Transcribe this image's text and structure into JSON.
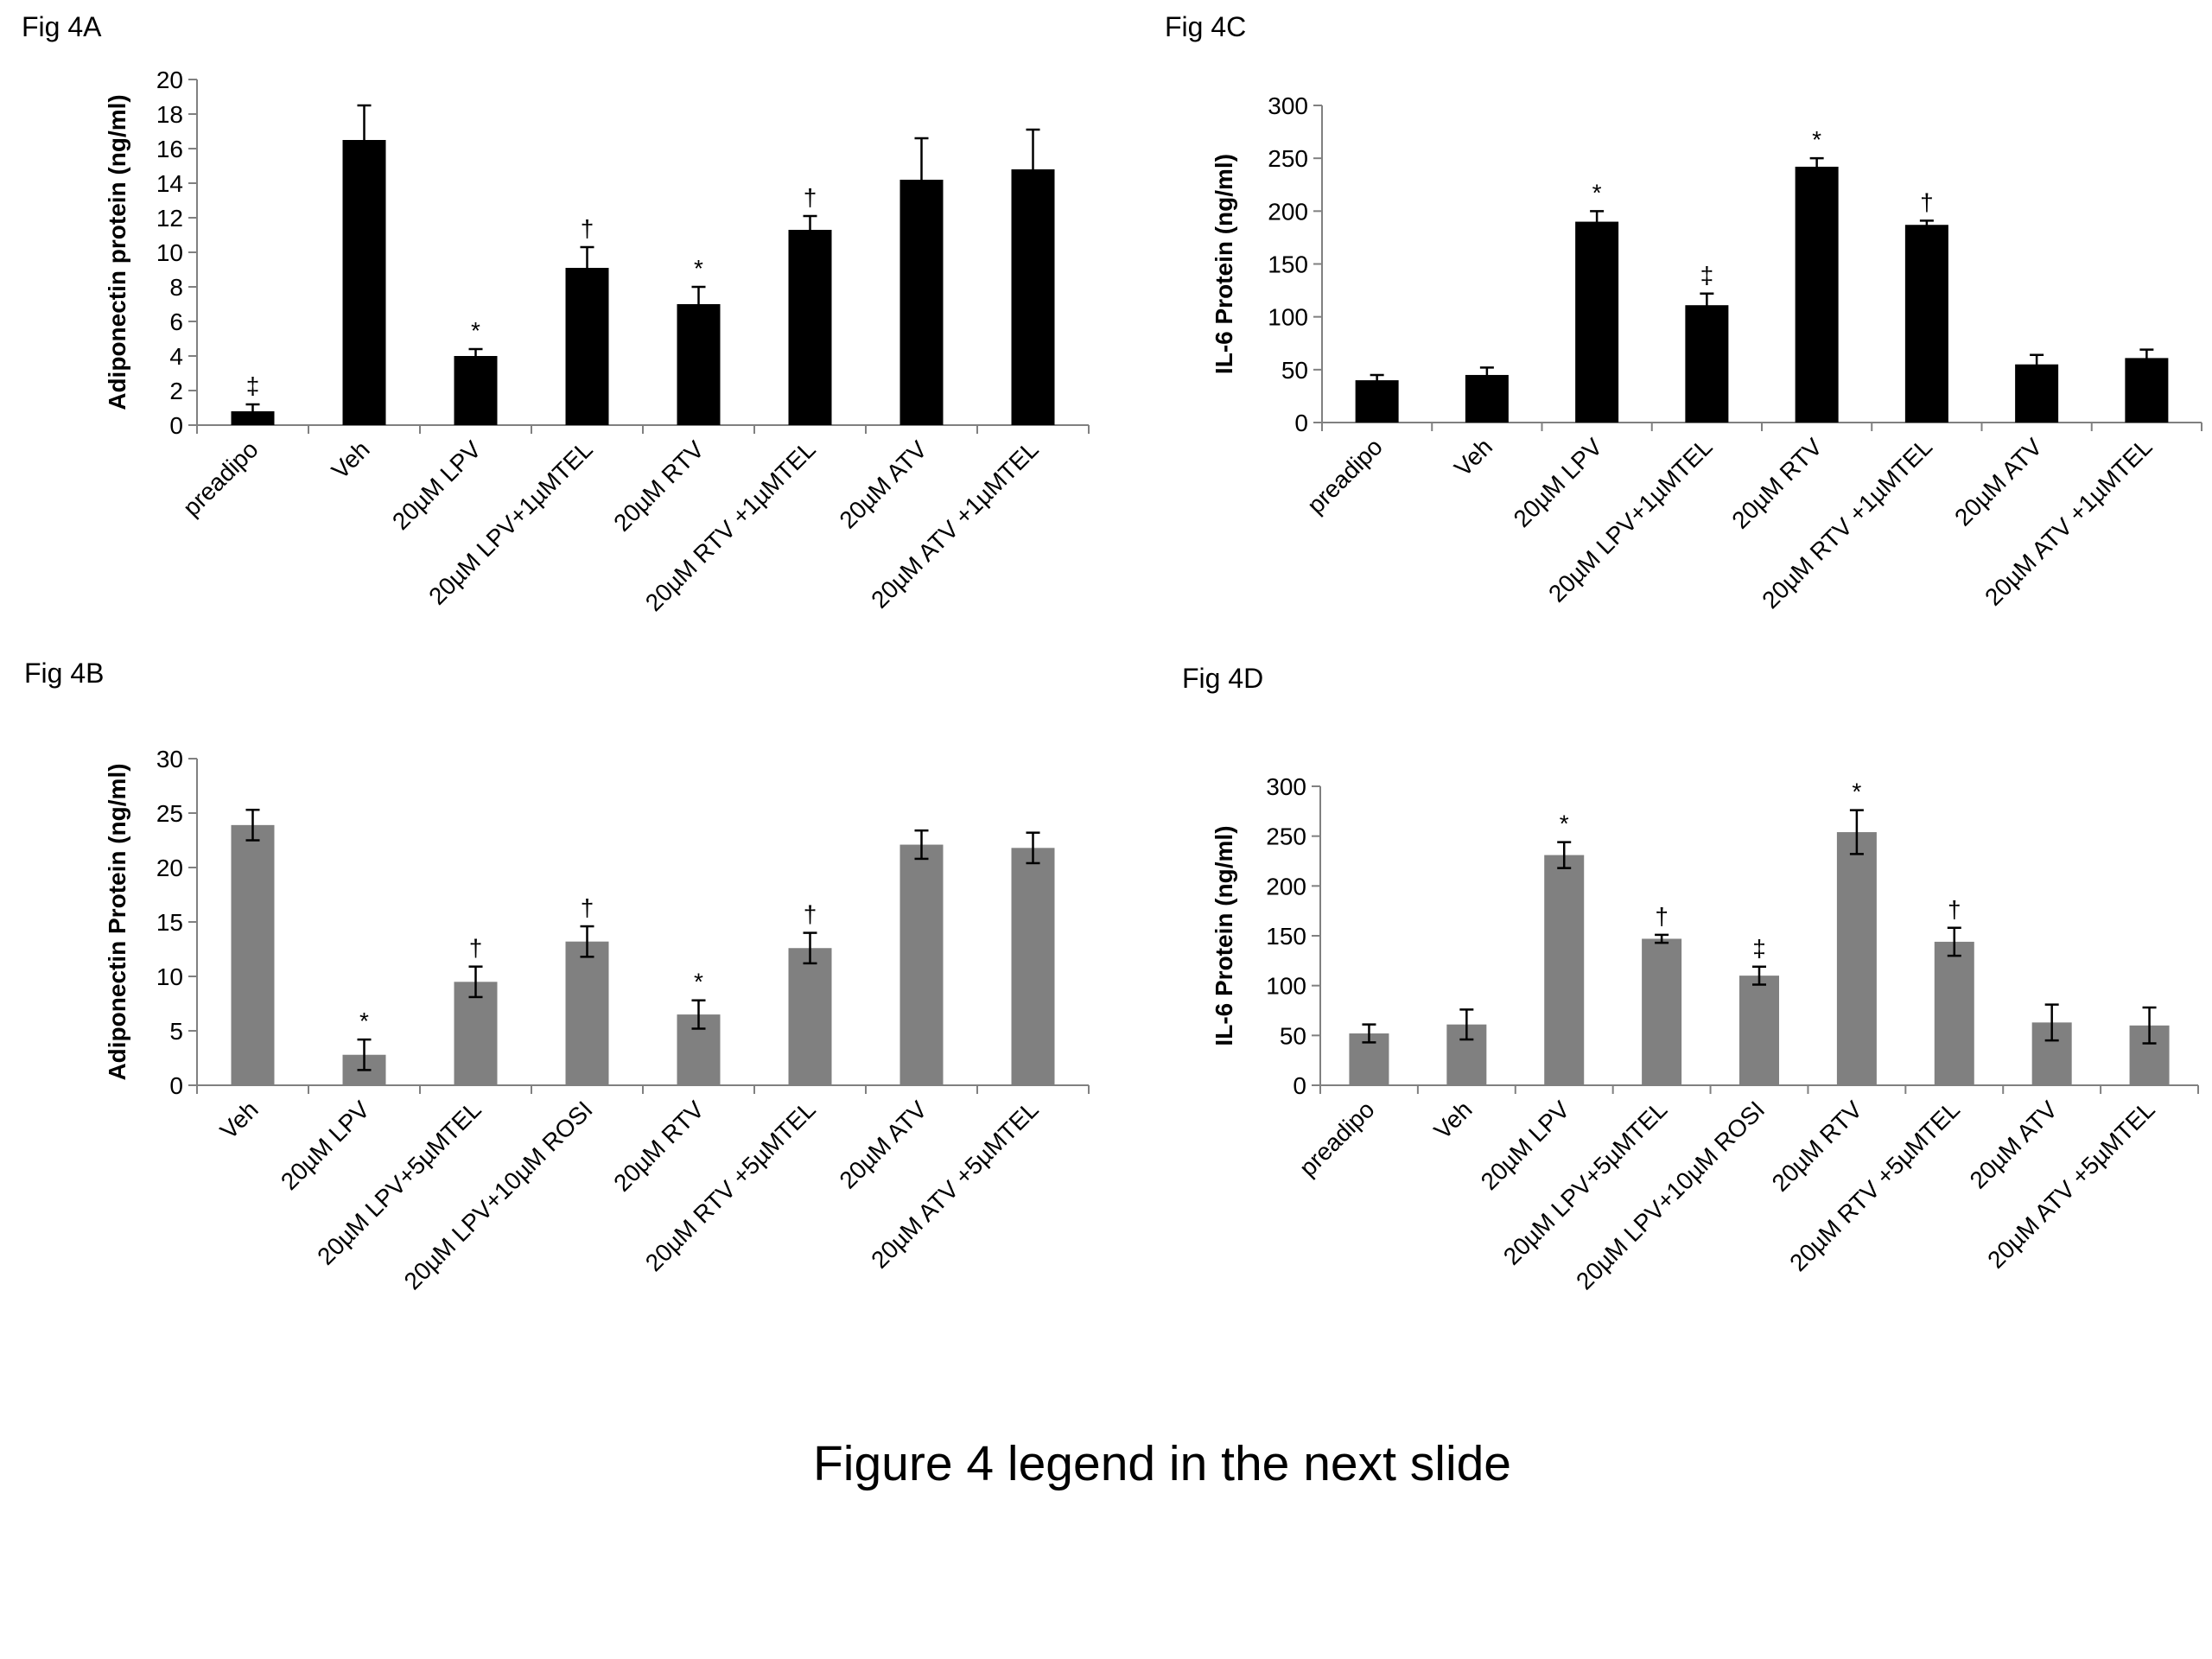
{
  "caption": "Figure 4 legend in the next slide",
  "bar_colors": {
    "black": "#000000",
    "gray": "#808080"
  },
  "chart_data": [
    {
      "id": "4A",
      "type": "bar",
      "title": "Fig 4A",
      "ylabel": "Adiponectin protein (ng/ml)",
      "xlabel": "",
      "ylim": [
        0,
        20
      ],
      "yticks": [
        0,
        2,
        4,
        6,
        8,
        10,
        12,
        14,
        16,
        18,
        20
      ],
      "color": "#000000",
      "categories": [
        "preadipo",
        "Veh",
        "20µM LPV",
        "20µM LPV+1µMTEL",
        "20µM RTV",
        "20µM RTV +1µMTEL",
        "20µM ATV",
        "20µM ATV +1µMTEL"
      ],
      "values": [
        0.8,
        16.5,
        4.0,
        9.1,
        7.0,
        11.3,
        14.2,
        14.8
      ],
      "errors": [
        0.4,
        2.0,
        0.4,
        1.2,
        1.0,
        0.8,
        2.4,
        2.3
      ],
      "annotations": [
        "‡",
        "",
        "*",
        "†",
        "*",
        "†",
        "",
        ""
      ]
    },
    {
      "id": "4C",
      "type": "bar",
      "title": "Fig 4C",
      "ylabel": "IL-6 Protein (ng/ml)",
      "xlabel": "",
      "ylim": [
        0,
        300
      ],
      "yticks": [
        0,
        50,
        100,
        150,
        200,
        250,
        300
      ],
      "color": "#000000",
      "categories": [
        "preadipo",
        "Veh",
        "20µM LPV",
        "20µM LPV+1µMTEL",
        "20µM RTV",
        "20µM RTV +1µMTEL",
        "20µM ATV",
        "20µM ATV +1µMTEL"
      ],
      "values": [
        40,
        45,
        190,
        111,
        242,
        187,
        55,
        61
      ],
      "errors": [
        5,
        7,
        10,
        11,
        8,
        4,
        9,
        8
      ],
      "annotations": [
        "",
        "",
        "*",
        "‡",
        "*",
        "†",
        "",
        ""
      ]
    },
    {
      "id": "4B",
      "type": "bar",
      "title": "Fig 4B",
      "ylabel": "Adiponectin Protein (ng/ml)",
      "xlabel": "",
      "ylim": [
        0,
        30
      ],
      "yticks": [
        0,
        5,
        10,
        15,
        20,
        25,
        30
      ],
      "color": "#808080",
      "categories": [
        "Veh",
        "20µM LPV",
        "20µM LPV+5µMTEL",
        "20µM LPV+10µM ROSI",
        "20µM RTV",
        "20µM RTV +5µMTEL",
        "20µM ATV",
        "20µM ATV +5µMTEL"
      ],
      "values": [
        23.9,
        2.8,
        9.5,
        13.2,
        6.5,
        12.6,
        22.1,
        21.8
      ],
      "errors": [
        1.4,
        1.4,
        1.4,
        1.4,
        1.3,
        1.4,
        1.3,
        1.4
      ],
      "annotations": [
        "",
        "*",
        "†",
        "†",
        "*",
        "†",
        "",
        ""
      ]
    },
    {
      "id": "4D",
      "type": "bar",
      "title": "Fig 4D",
      "ylabel": "IL-6 Protein (ng/ml)",
      "xlabel": "",
      "ylim": [
        0,
        300
      ],
      "yticks": [
        0,
        50,
        100,
        150,
        200,
        250,
        300
      ],
      "color": "#808080",
      "categories": [
        "preadipo",
        "Veh",
        "20µM LPV",
        "20µM LPV+5µMTEL",
        "20µM LPV+10µM ROSI",
        "20µM RTV",
        "20µM RTV +5µMTEL",
        "20µM ATV",
        "20µM ATV +5µMTEL"
      ],
      "values": [
        52,
        61,
        231,
        147,
        110,
        254,
        144,
        63,
        60
      ],
      "errors": [
        9,
        15,
        13,
        4,
        9,
        22,
        14,
        18,
        18
      ],
      "annotations": [
        "",
        "",
        "*",
        "†",
        "‡",
        "*",
        "†",
        "",
        ""
      ]
    }
  ]
}
